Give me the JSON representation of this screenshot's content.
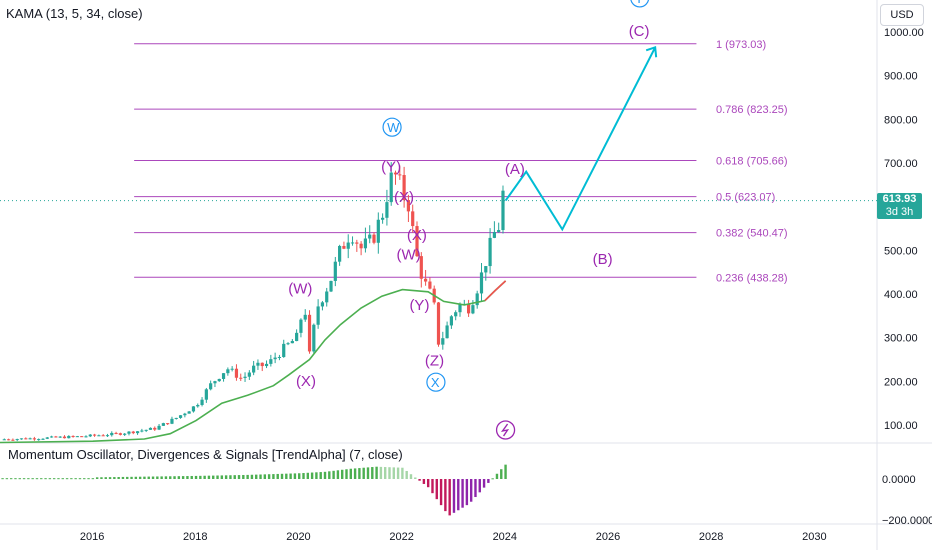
{
  "chart_data": [
    {
      "type": "candlestick",
      "title": "KAMA (13, 5, 34, close)",
      "currency": "USD",
      "last_price": "613.93",
      "last_price_countdown": "3d 3h",
      "y_ticks": [
        100,
        200,
        300,
        400,
        500,
        600,
        700,
        800,
        900,
        1000
      ],
      "y_tick_labels": [
        "100.00",
        "200.00",
        "300.00",
        "400.00",
        "500.00",
        "600.00",
        "700.00",
        "800.00",
        "900.00",
        "1000.00"
      ],
      "ylim": [
        40,
        1040
      ],
      "x_ticks": [
        2016,
        2018,
        2020,
        2022,
        2024,
        2026,
        2028,
        2030
      ],
      "xlim": [
        2014.2,
        2031.2
      ],
      "colors": {
        "up": "#26a69a",
        "down": "#ef5350",
        "kama": "#4caf50",
        "fib": "#ab47bc",
        "projection": "#00bcd4",
        "wave_main": "#9c27b0",
        "wave_major": "#2196f3"
      },
      "fib_levels": [
        {
          "ratio": "1",
          "price": 973.03,
          "label": "1 (973.03)"
        },
        {
          "ratio": "0.786",
          "price": 823.25,
          "label": "0.786 (823.25)"
        },
        {
          "ratio": "0.618",
          "price": 705.66,
          "label": "0.618 (705.66)"
        },
        {
          "ratio": "0.5",
          "price": 623.07,
          "label": "0.5 (623.07)"
        },
        {
          "ratio": "0.382",
          "price": 540.47,
          "label": "0.382 (540.47)"
        },
        {
          "ratio": "0.236",
          "price": 438.28,
          "label": "0.236 (438.28)"
        }
      ],
      "fib_x_range": [
        2016.8,
        2027.7
      ],
      "price_path": [
        [
          2014.2,
          67
        ],
        [
          2015.0,
          70
        ],
        [
          2015.8,
          74
        ],
        [
          2016.5,
          80
        ],
        [
          2016.8,
          85
        ],
        [
          2017.2,
          92
        ],
        [
          2017.6,
          115
        ],
        [
          2018.0,
          145
        ],
        [
          2018.3,
          195
        ],
        [
          2018.6,
          230
        ],
        [
          2018.9,
          205
        ],
        [
          2019.1,
          230
        ],
        [
          2019.4,
          240
        ],
        [
          2019.7,
          275
        ],
        [
          2019.95,
          300
        ],
        [
          2020.1,
          380
        ],
        [
          2020.2,
          260
        ],
        [
          2020.35,
          370
        ],
        [
          2020.6,
          430
        ],
        [
          2020.8,
          500
        ],
        [
          2021.0,
          545
        ],
        [
          2021.2,
          505
        ],
        [
          2021.4,
          520
        ],
        [
          2021.5,
          550
        ],
        [
          2021.65,
          595
        ],
        [
          2021.75,
          660
        ],
        [
          2021.9,
          672
        ],
        [
          2022.0,
          625
        ],
        [
          2022.1,
          620
        ],
        [
          2022.3,
          470
        ],
        [
          2022.45,
          420
        ],
        [
          2022.6,
          385
        ],
        [
          2022.7,
          290
        ],
        [
          2022.8,
          305
        ],
        [
          2022.95,
          350
        ],
        [
          2023.1,
          375
        ],
        [
          2023.3,
          370
        ],
        [
          2023.5,
          430
        ],
        [
          2023.65,
          490
        ],
        [
          2023.8,
          545
        ],
        [
          2023.9,
          560
        ],
        [
          2023.95,
          630
        ],
        [
          2024.0,
          613.93
        ]
      ],
      "kama": [
        [
          2014.2,
          60
        ],
        [
          2016.0,
          63
        ],
        [
          2017.0,
          68
        ],
        [
          2017.5,
          80
        ],
        [
          2018.0,
          110
        ],
        [
          2018.5,
          150
        ],
        [
          2019.0,
          168
        ],
        [
          2019.5,
          190
        ],
        [
          2019.8,
          215
        ],
        [
          2020.2,
          250
        ],
        [
          2020.5,
          295
        ],
        [
          2020.8,
          330
        ],
        [
          2021.2,
          368
        ],
        [
          2021.6,
          395
        ],
        [
          2022.0,
          410
        ],
        [
          2022.5,
          405
        ],
        [
          2022.8,
          383
        ],
        [
          2023.2,
          375
        ],
        [
          2023.6,
          385
        ],
        [
          2023.8,
          408
        ],
        [
          2024.0,
          430
        ]
      ],
      "projection": [
        [
          2024.0,
          613.93
        ],
        [
          2024.4,
          680
        ],
        [
          2025.1,
          548
        ],
        [
          2026.9,
          965
        ]
      ],
      "wave_labels": [
        {
          "text": "(W)",
          "x": 2020.0,
          "y": 413,
          "color": "wave_main"
        },
        {
          "text": "(X)",
          "x": 2020.15,
          "y": 201,
          "color": "wave_main"
        },
        {
          "text": "(Y)",
          "x": 2021.8,
          "y": 692,
          "color": "wave_main"
        },
        {
          "text": "(X)",
          "x": 2022.05,
          "y": 622,
          "color": "wave_main"
        },
        {
          "text": "(X)",
          "x": 2022.3,
          "y": 535,
          "color": "wave_main"
        },
        {
          "text": "(W)",
          "x": 2022.1,
          "y": 490,
          "color": "wave_main"
        },
        {
          "text": "(Y)",
          "x": 2022.35,
          "y": 375,
          "color": "wave_main"
        },
        {
          "text": "(Z)",
          "x": 2022.65,
          "y": 248,
          "color": "wave_main"
        },
        {
          "text": "(A)",
          "x": 2024.2,
          "y": 686,
          "color": "wave_main"
        },
        {
          "text": "(B)",
          "x": 2025.9,
          "y": 480,
          "color": "wave_main"
        },
        {
          "text": "(C)",
          "x": 2026.6,
          "y": 1002,
          "color": "wave_main"
        }
      ],
      "circle_labels": [
        {
          "text": "W",
          "x": 2021.8,
          "y": 782
        },
        {
          "text": "X",
          "x": 2022.65,
          "y": 198
        },
        {
          "text": "Y",
          "x": 2026.6,
          "y": 1078
        }
      ],
      "signal_icon": "lightning-bolt-icon"
    },
    {
      "type": "bar",
      "title": "Momentum Oscillator, Divergences & Signals [TrendAlpha] (7, close)",
      "y_ticks": [
        0,
        -200
      ],
      "y_tick_labels": [
        "0.0000",
        "−200.0000"
      ],
      "ylim": [
        -230,
        80
      ],
      "x": [
        2016,
        2018,
        2019,
        2020,
        2020.5,
        2021,
        2021.5,
        2022,
        2022.5,
        2022.9,
        2023.3,
        2023.7,
        2024
      ],
      "values": [
        8,
        15,
        20,
        28,
        35,
        50,
        60,
        55,
        -40,
        -180,
        -120,
        -10,
        70
      ]
    }
  ],
  "indicator_label": "Momentum Oscillator, Divergences & Signals [TrendAlpha] (7, close)",
  "main_label": "KAMA (13, 5, 34, close)",
  "currency_button": "USD",
  "price_badge": {
    "price": "613.93",
    "countdown": "3d 3h"
  }
}
